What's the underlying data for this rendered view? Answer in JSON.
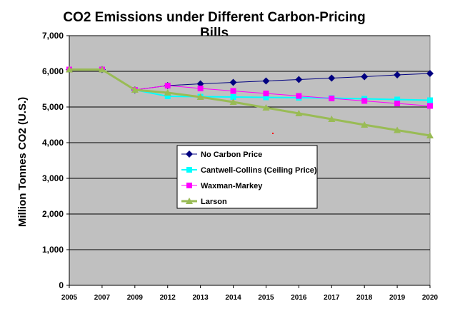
{
  "chart_data": {
    "type": "line",
    "title_lines": [
      "CO2 Emissions under Different Carbon-Pricing",
      "Bills"
    ],
    "ylabel": "Million Tonnes CO2 (U.S.)",
    "xlabel": "",
    "categories": [
      "2005",
      "2007",
      "2009",
      "2012",
      "2013",
      "2014",
      "2015",
      "2016",
      "2017",
      "2018",
      "2019",
      "2020"
    ],
    "ylim": [
      0,
      7000
    ],
    "yticks": [
      0,
      1000,
      2000,
      3000,
      4000,
      5000,
      6000,
      7000
    ],
    "ytick_labels": [
      "0",
      "1,000",
      "2,000",
      "3,000",
      "4,000",
      "5,000",
      "6,000",
      "7,000"
    ],
    "grid": "horizontal",
    "legend_position": "center",
    "plot_background": "#c0c0c0",
    "series": [
      {
        "name": "No Carbon Price",
        "color": "#000080",
        "marker": "diamond",
        "values": [
          6050,
          6050,
          5480,
          5600,
          5650,
          5690,
          5730,
          5770,
          5810,
          5850,
          5900,
          5940
        ]
      },
      {
        "name": "Cantwell-Collins (Ceiling Price)",
        "color": "#00ffff",
        "marker": "square",
        "values": [
          6050,
          6050,
          5480,
          5300,
          5290,
          5280,
          5270,
          5260,
          5250,
          5230,
          5210,
          5190
        ]
      },
      {
        "name": "Waxman-Markey",
        "color": "#ff00ff",
        "marker": "square",
        "values": [
          6050,
          6050,
          5480,
          5600,
          5520,
          5450,
          5380,
          5310,
          5240,
          5170,
          5100,
          5030
        ]
      },
      {
        "name": "Larson",
        "color": "#99bb55",
        "marker": "triangle",
        "values": [
          6050,
          6050,
          5480,
          5400,
          5280,
          5140,
          4980,
          4820,
          4660,
          4500,
          4350,
          4200
        ]
      }
    ]
  }
}
